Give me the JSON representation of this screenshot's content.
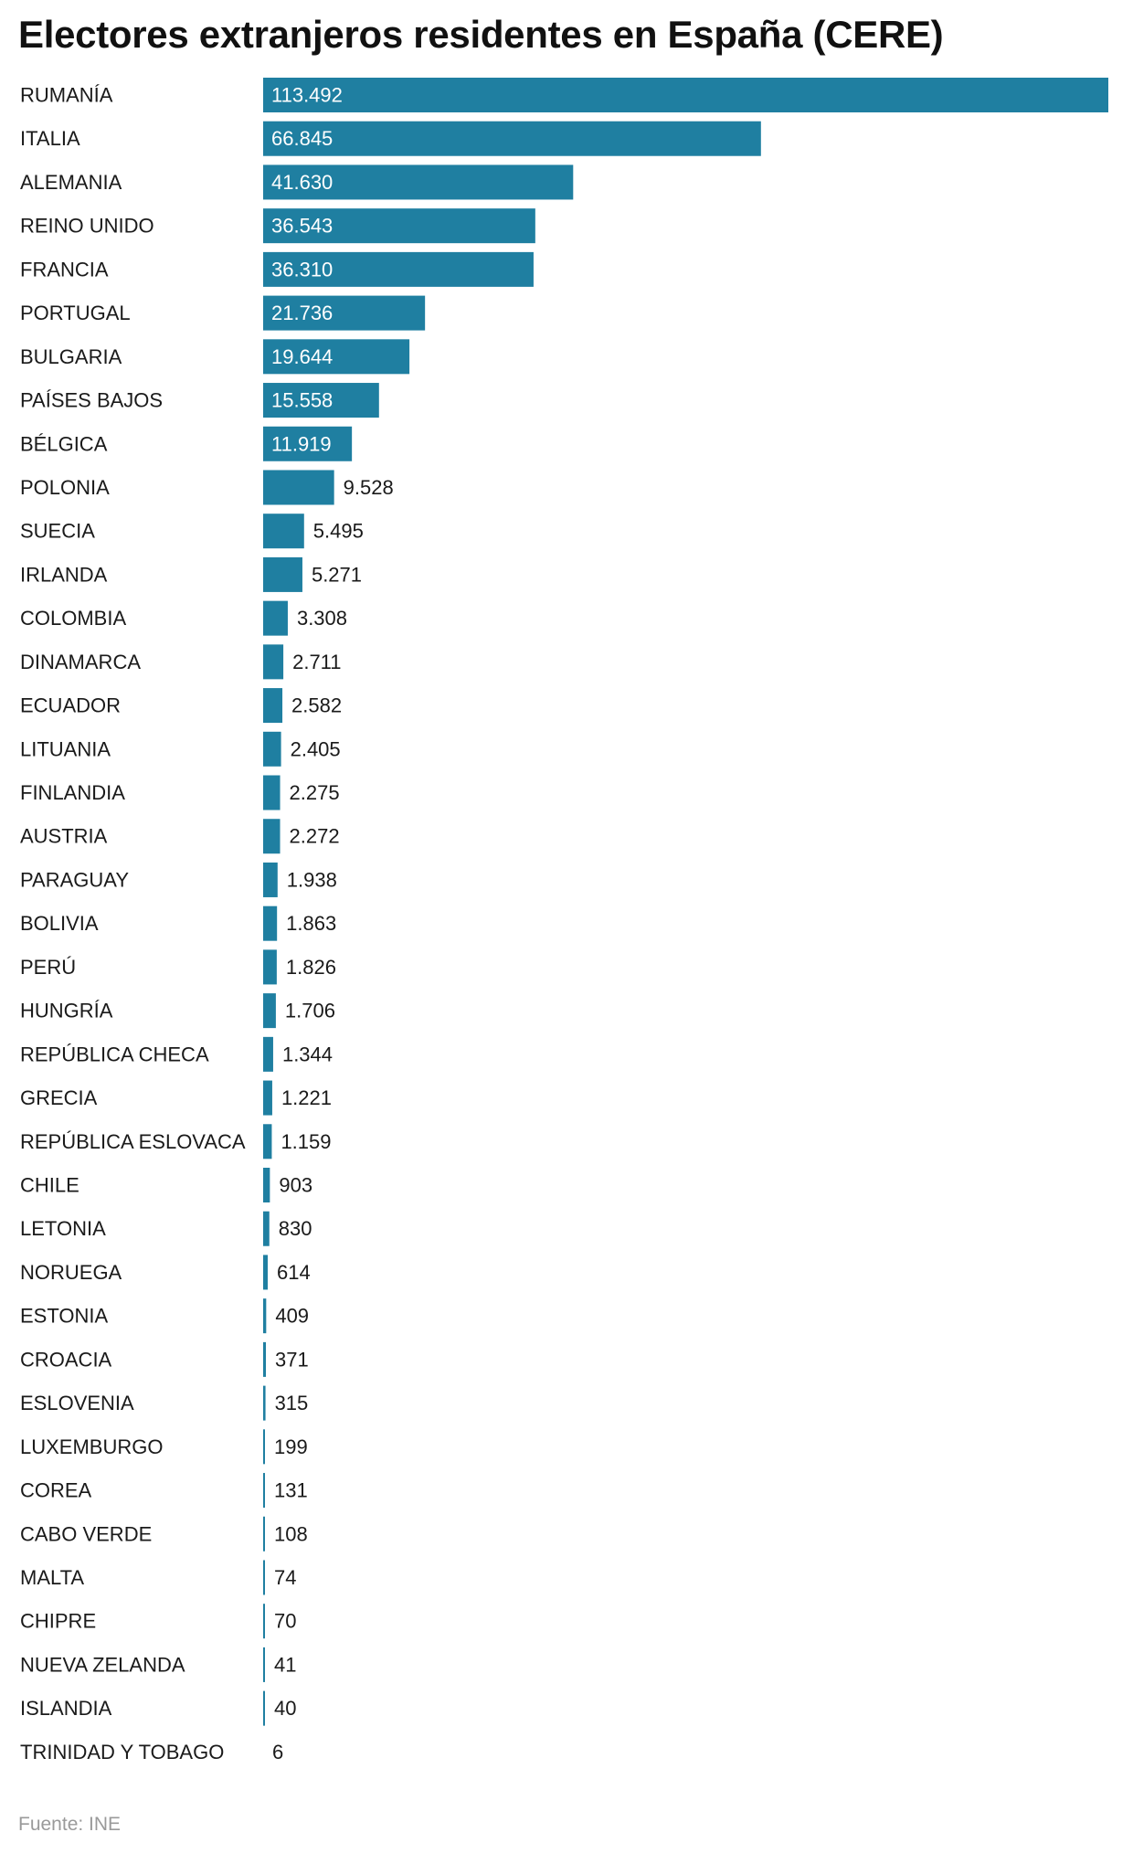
{
  "header": {
    "title": "Electores extranjeros residentes en España (CERE)"
  },
  "footer": {
    "source": "Fuente: INE"
  },
  "colors": {
    "bar": "#1f7fa1",
    "label_inside": "#ffffff",
    "label_outside": "#1a1a1a",
    "category_text": "#1a1a1a"
  },
  "chart_data": {
    "type": "bar",
    "orientation": "horizontal",
    "title": "Electores extranjeros residentes en España (CERE)",
    "xlabel": "",
    "ylabel": "",
    "grid": false,
    "legend": "none",
    "xlim": [
      0,
      113492
    ],
    "categories": [
      "RUMANÍA",
      "ITALIA",
      "ALEMANIA",
      "REINO UNIDO",
      "FRANCIA",
      "PORTUGAL",
      "BULGARIA",
      "PAÍSES BAJOS",
      "BÉLGICA",
      "POLONIA",
      "SUECIA",
      "IRLANDA",
      "COLOMBIA",
      "DINAMARCA",
      "ECUADOR",
      "LITUANIA",
      "FINLANDIA",
      "AUSTRIA",
      "PARAGUAY",
      "BOLIVIA",
      "PERÚ",
      "HUNGRÍA",
      "REPÚBLICA CHECA",
      "GRECIA",
      "REPÚBLICA ESLOVACA",
      "CHILE",
      "LETONIA",
      "NORUEGA",
      "ESTONIA",
      "CROACIA",
      "ESLOVENIA",
      "LUXEMBURGO",
      "COREA",
      "CABO VERDE",
      "MALTA",
      "CHIPRE",
      "NUEVA ZELANDA",
      "ISLANDIA",
      "TRINIDAD Y TOBAGO"
    ],
    "values": [
      113492,
      66845,
      41630,
      36543,
      36310,
      21736,
      19644,
      15558,
      11919,
      9528,
      5495,
      5271,
      3308,
      2711,
      2582,
      2405,
      2275,
      2272,
      1938,
      1863,
      1826,
      1706,
      1344,
      1221,
      1159,
      903,
      830,
      614,
      409,
      371,
      315,
      199,
      131,
      108,
      74,
      70,
      41,
      40,
      6
    ],
    "value_labels": [
      "113.492",
      "66.845",
      "41.630",
      "36.543",
      "36.310",
      "21.736",
      "19.644",
      "15.558",
      "11.919",
      "9.528",
      "5.495",
      "5.271",
      "3.308",
      "2.711",
      "2.582",
      "2.405",
      "2.275",
      "2.272",
      "1.938",
      "1.863",
      "1.826",
      "1.706",
      "1.344",
      "1.221",
      "1.159",
      "903",
      "830",
      "614",
      "409",
      "371",
      "315",
      "199",
      "131",
      "108",
      "74",
      "70",
      "41",
      "40",
      "6"
    ]
  }
}
